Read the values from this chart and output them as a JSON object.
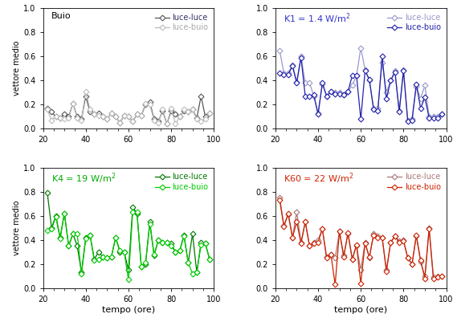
{
  "panels": [
    {
      "title": "Buio",
      "title_color": "black",
      "ll_color": "#555555",
      "lb_color": "#bbbbbb",
      "ll_text_color": "#333366",
      "lb_text_color": "#aaaaaa",
      "xlim": [
        20,
        100
      ],
      "ylim": [
        0.0,
        1.0
      ],
      "yticks": [
        0.0,
        0.2,
        0.4,
        0.6,
        0.8,
        1.0
      ],
      "luce_luce_x": [
        22,
        24,
        26,
        28,
        30,
        32,
        34,
        36,
        38,
        40,
        42,
        44,
        46,
        48,
        50,
        52,
        54,
        56,
        58,
        60,
        62,
        64,
        66,
        68,
        70,
        72,
        74,
        76,
        78,
        80,
        82,
        84,
        86,
        88,
        90,
        92,
        94,
        96,
        98
      ],
      "luce_luce_y": [
        0.17,
        0.14,
        0.1,
        0.09,
        0.12,
        0.1,
        0.21,
        0.1,
        0.08,
        0.27,
        0.14,
        0.12,
        0.13,
        0.1,
        0.08,
        0.13,
        0.1,
        0.05,
        0.11,
        0.1,
        0.06,
        0.12,
        0.11,
        0.2,
        0.22,
        0.08,
        0.06,
        0.15,
        0.04,
        0.15,
        0.12,
        0.1,
        0.15,
        0.14,
        0.16,
        0.09,
        0.27,
        0.1,
        0.13
      ],
      "luce_buio_x": [
        22,
        24,
        26,
        28,
        30,
        32,
        34,
        36,
        38,
        40,
        42,
        44,
        46,
        48,
        50,
        52,
        54,
        56,
        58,
        60,
        62,
        64,
        66,
        68,
        70,
        72,
        74,
        76,
        78,
        80,
        82,
        84,
        86,
        88,
        90,
        92,
        94,
        96,
        98
      ],
      "luce_buio_y": [
        0.16,
        0.07,
        0.1,
        0.09,
        0.08,
        0.09,
        0.21,
        0.09,
        0.07,
        0.31,
        0.16,
        0.12,
        0.11,
        0.1,
        0.08,
        0.13,
        0.1,
        0.05,
        0.11,
        0.1,
        0.06,
        0.12,
        0.11,
        0.21,
        0.2,
        0.07,
        0.05,
        0.16,
        0.04,
        0.17,
        0.04,
        0.1,
        0.16,
        0.14,
        0.16,
        0.08,
        0.06,
        0.08,
        0.13
      ]
    },
    {
      "title": "K1 = 1.4 W/m$^2$",
      "title_color": "#3333cc",
      "ll_color": "#9999cc",
      "lb_color": "#2222aa",
      "ll_text_color": "#9999cc",
      "lb_text_color": "#2222aa",
      "xlim": [
        20,
        100
      ],
      "ylim": [
        0.0,
        1.0
      ],
      "yticks": [
        0.0,
        0.2,
        0.4,
        0.6,
        0.8,
        1.0
      ],
      "luce_luce_x": [
        22,
        24,
        26,
        28,
        30,
        32,
        34,
        36,
        38,
        40,
        42,
        44,
        46,
        48,
        50,
        52,
        54,
        56,
        58,
        60,
        62,
        64,
        66,
        68,
        70,
        72,
        74,
        76,
        78,
        80,
        82,
        84,
        86,
        88,
        90,
        92,
        94,
        96,
        98
      ],
      "luce_luce_y": [
        0.65,
        0.46,
        0.46,
        0.53,
        0.39,
        0.6,
        0.38,
        0.38,
        0.27,
        0.13,
        0.37,
        0.27,
        0.31,
        0.3,
        0.3,
        0.28,
        0.31,
        0.36,
        0.44,
        0.67,
        0.49,
        0.4,
        0.17,
        0.17,
        0.55,
        0.3,
        0.4,
        0.48,
        0.15,
        0.49,
        0.07,
        0.08,
        0.35,
        0.25,
        0.36,
        0.1,
        0.1,
        0.1,
        0.12
      ],
      "luce_buio_x": [
        22,
        24,
        26,
        28,
        30,
        32,
        34,
        36,
        38,
        40,
        42,
        44,
        46,
        48,
        50,
        52,
        54,
        56,
        58,
        60,
        62,
        64,
        66,
        68,
        70,
        72,
        74,
        76,
        78,
        80,
        82,
        84,
        86,
        88,
        90,
        92,
        94,
        96,
        98
      ],
      "luce_buio_y": [
        0.46,
        0.45,
        0.45,
        0.52,
        0.38,
        0.59,
        0.27,
        0.27,
        0.28,
        0.12,
        0.38,
        0.27,
        0.31,
        0.29,
        0.29,
        0.28,
        0.31,
        0.44,
        0.44,
        0.08,
        0.48,
        0.41,
        0.16,
        0.15,
        0.6,
        0.25,
        0.4,
        0.47,
        0.14,
        0.48,
        0.06,
        0.07,
        0.37,
        0.17,
        0.26,
        0.09,
        0.09,
        0.09,
        0.12
      ]
    },
    {
      "title": "K4 = 19 W/m$^2$",
      "title_color": "#00aa00",
      "ll_color": "#007700",
      "lb_color": "#00cc00",
      "ll_text_color": "#007700",
      "lb_text_color": "#00cc00",
      "xlim": [
        20,
        100
      ],
      "ylim": [
        0.0,
        1.0
      ],
      "yticks": [
        0.0,
        0.2,
        0.4,
        0.6,
        0.8,
        1.0
      ],
      "luce_luce_x": [
        22,
        24,
        26,
        28,
        30,
        32,
        34,
        36,
        38,
        40,
        42,
        44,
        46,
        48,
        50,
        52,
        54,
        56,
        58,
        60,
        62,
        64,
        66,
        68,
        70,
        72,
        74,
        76,
        78,
        80,
        82,
        84,
        86,
        88,
        90,
        92,
        94,
        96,
        98
      ],
      "luce_luce_y": [
        0.79,
        0.5,
        0.6,
        0.42,
        0.62,
        0.35,
        0.45,
        0.35,
        0.13,
        0.42,
        0.44,
        0.24,
        0.3,
        0.26,
        0.25,
        0.26,
        0.42,
        0.3,
        0.3,
        0.15,
        0.67,
        0.62,
        0.18,
        0.2,
        0.55,
        0.27,
        0.4,
        0.38,
        0.38,
        0.37,
        0.3,
        0.31,
        0.44,
        0.21,
        0.45,
        0.13,
        0.38,
        0.37,
        0.24
      ],
      "luce_buio_x": [
        22,
        24,
        26,
        28,
        30,
        32,
        34,
        36,
        38,
        40,
        42,
        44,
        46,
        48,
        50,
        52,
        54,
        56,
        58,
        60,
        62,
        64,
        66,
        68,
        70,
        72,
        74,
        76,
        78,
        80,
        82,
        84,
        86,
        88,
        90,
        92,
        94,
        96,
        98
      ],
      "luce_buio_y": [
        0.48,
        0.49,
        0.59,
        0.41,
        0.62,
        0.35,
        0.45,
        0.45,
        0.12,
        0.41,
        0.44,
        0.23,
        0.24,
        0.26,
        0.25,
        0.26,
        0.42,
        0.31,
        0.3,
        0.07,
        0.63,
        0.63,
        0.18,
        0.21,
        0.53,
        0.28,
        0.4,
        0.38,
        0.38,
        0.35,
        0.3,
        0.31,
        0.43,
        0.21,
        0.12,
        0.13,
        0.36,
        0.37,
        0.24
      ]
    },
    {
      "title": "K60 = 22 W/m$^2$",
      "title_color": "#cc2200",
      "ll_color": "#aa7777",
      "lb_color": "#cc2200",
      "ll_text_color": "#aa7777",
      "lb_text_color": "#cc2200",
      "xlim": [
        20,
        100
      ],
      "ylim": [
        0.0,
        1.0
      ],
      "yticks": [
        0.0,
        0.2,
        0.4,
        0.6,
        0.8,
        1.0
      ],
      "luce_luce_x": [
        22,
        24,
        26,
        28,
        30,
        32,
        34,
        36,
        38,
        40,
        42,
        44,
        46,
        48,
        50,
        52,
        54,
        56,
        58,
        60,
        62,
        64,
        66,
        68,
        70,
        72,
        74,
        76,
        78,
        80,
        82,
        84,
        86,
        88,
        90,
        92,
        94,
        96,
        98
      ],
      "luce_luce_y": [
        0.75,
        0.52,
        0.61,
        0.42,
        0.63,
        0.38,
        0.55,
        0.35,
        0.38,
        0.4,
        0.49,
        0.26,
        0.28,
        0.25,
        0.47,
        0.27,
        0.45,
        0.24,
        0.35,
        0.15,
        0.38,
        0.25,
        0.45,
        0.43,
        0.42,
        0.15,
        0.38,
        0.43,
        0.39,
        0.4,
        0.25,
        0.2,
        0.43,
        0.22,
        0.1,
        0.5,
        0.09,
        0.1,
        0.1
      ],
      "luce_buio_x": [
        22,
        24,
        26,
        28,
        30,
        32,
        34,
        36,
        38,
        40,
        42,
        44,
        46,
        48,
        50,
        52,
        54,
        56,
        58,
        60,
        62,
        64,
        66,
        68,
        70,
        72,
        74,
        76,
        78,
        80,
        82,
        84,
        86,
        88,
        90,
        92,
        94,
        96,
        98
      ],
      "luce_buio_y": [
        0.73,
        0.51,
        0.62,
        0.42,
        0.55,
        0.37,
        0.55,
        0.35,
        0.37,
        0.38,
        0.49,
        0.25,
        0.28,
        0.03,
        0.47,
        0.26,
        0.46,
        0.24,
        0.36,
        0.04,
        0.37,
        0.26,
        0.44,
        0.42,
        0.42,
        0.14,
        0.38,
        0.43,
        0.38,
        0.39,
        0.25,
        0.2,
        0.44,
        0.23,
        0.08,
        0.49,
        0.08,
        0.09,
        0.1
      ]
    }
  ],
  "xlabel": "tempo (ore)",
  "ylabel": "vettore medio",
  "legend_ll": "luce-luce",
  "legend_lb": "luce-buio",
  "marker": "D",
  "markersize": 3.5,
  "linewidth": 0.9
}
